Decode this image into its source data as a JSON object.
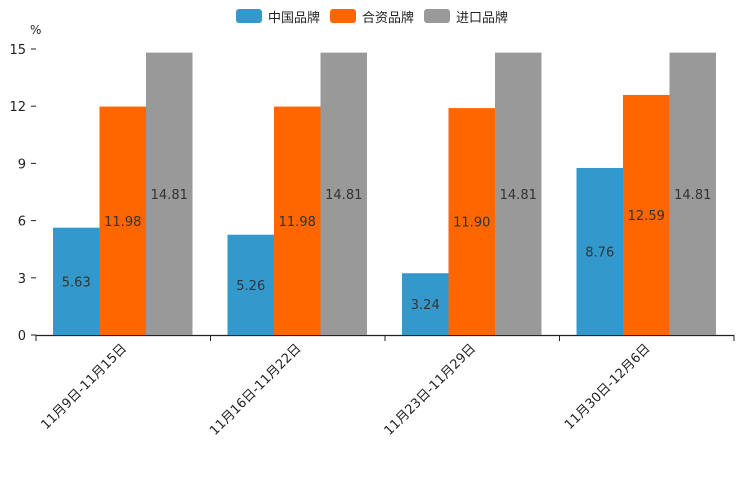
{
  "chart_data": {
    "type": "bar",
    "title": "",
    "xlabel": "",
    "ylabel": "%",
    "ylim": [
      0,
      15
    ],
    "yticks": [
      0,
      3,
      6,
      9,
      12,
      15
    ],
    "categories": [
      "11月9日-11月15日",
      "11月16日-11月22日",
      "11月23日-11月29日",
      "11月30日-12月6日"
    ],
    "series": [
      {
        "name": "中国品牌",
        "color": "#3399cc",
        "values": [
          5.63,
          5.26,
          3.24,
          8.76
        ]
      },
      {
        "name": "合资品牌",
        "color": "#ff6600",
        "values": [
          11.98,
          11.98,
          11.9,
          12.59
        ]
      },
      {
        "name": "进口品牌",
        "color": "#999999",
        "values": [
          14.81,
          14.81,
          14.81,
          14.81
        ]
      }
    ],
    "legend_position": "top-center",
    "grid": false
  }
}
